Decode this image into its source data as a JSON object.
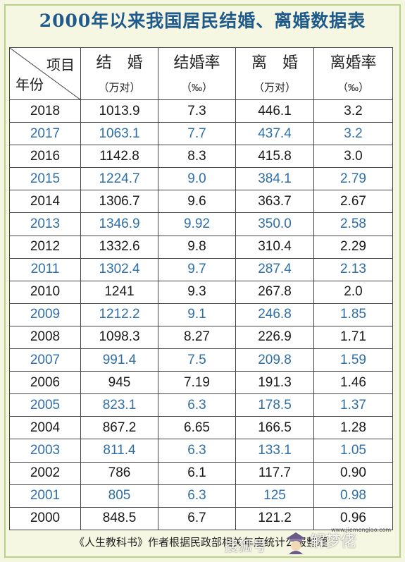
{
  "title": "2000年以来我国居民结婚、离婚数据表",
  "table": {
    "corner_top": "项目",
    "corner_bottom": "年份",
    "headers": [
      {
        "main": "结　婚",
        "unit": "（万对）"
      },
      {
        "main": "结婚率",
        "unit": "（‰）"
      },
      {
        "main": "离　婚",
        "unit": "（万对）"
      },
      {
        "main": "离婚率",
        "unit": "（‰）"
      }
    ],
    "rows": [
      {
        "year": "2018",
        "marriages": "1013.9",
        "marriage_rate": "7.3",
        "divorces": "446.1",
        "divorce_rate": "3.2",
        "style": "dark"
      },
      {
        "year": "2017",
        "marriages": "1063.1",
        "marriage_rate": "7.7",
        "divorces": "437.4",
        "divorce_rate": "3.2",
        "style": "blue"
      },
      {
        "year": "2016",
        "marriages": "1142.8",
        "marriage_rate": "8.3",
        "divorces": "415.8",
        "divorce_rate": "3.0",
        "style": "dark"
      },
      {
        "year": "2015",
        "marriages": "1224.7",
        "marriage_rate": "9.0",
        "divorces": "384.1",
        "divorce_rate": "2.79",
        "style": "blue"
      },
      {
        "year": "2014",
        "marriages": "1306.7",
        "marriage_rate": "9.6",
        "divorces": "363.7",
        "divorce_rate": "2.67",
        "style": "dark"
      },
      {
        "year": "2013",
        "marriages": "1346.9",
        "marriage_rate": "9.92",
        "divorces": "350.0",
        "divorce_rate": "2.58",
        "style": "blue"
      },
      {
        "year": "2012",
        "marriages": "1332.6",
        "marriage_rate": "9.8",
        "divorces": "310.4",
        "divorce_rate": "2.29",
        "style": "dark"
      },
      {
        "year": "2011",
        "marriages": "1302.4",
        "marriage_rate": "9.7",
        "divorces": "287.4",
        "divorce_rate": "2.13",
        "style": "blue"
      },
      {
        "year": "2010",
        "marriages": "1241",
        "marriage_rate": "9.3",
        "divorces": "267.8",
        "divorce_rate": "2.0",
        "style": "dark"
      },
      {
        "year": "2009",
        "marriages": "1212.2",
        "marriage_rate": "9.1",
        "divorces": "246.8",
        "divorce_rate": "1.85",
        "style": "blue"
      },
      {
        "year": "2008",
        "marriages": "1098.3",
        "marriage_rate": "8.27",
        "divorces": "226.9",
        "divorce_rate": "1.71",
        "style": "dark"
      },
      {
        "year": "2007",
        "marriages": "991.4",
        "marriage_rate": "7.5",
        "divorces": "209.8",
        "divorce_rate": "1.59",
        "style": "blue"
      },
      {
        "year": "2006",
        "marriages": "945",
        "marriage_rate": "7.19",
        "divorces": "191.3",
        "divorce_rate": "1.46",
        "style": "dark"
      },
      {
        "year": "2005",
        "marriages": "823.1",
        "marriage_rate": "6.3",
        "divorces": "178.5",
        "divorce_rate": "1.37",
        "style": "blue"
      },
      {
        "year": "2004",
        "marriages": "867.2",
        "marriage_rate": "6.65",
        "divorces": "166.5",
        "divorce_rate": "1.28",
        "style": "dark"
      },
      {
        "year": "2003",
        "marriages": "811.4",
        "marriage_rate": "6.3",
        "divorces": "133.1",
        "divorce_rate": "1.05",
        "style": "blue"
      },
      {
        "year": "2002",
        "marriages": "786",
        "marriage_rate": "6.1",
        "divorces": "117.7",
        "divorce_rate": "0.90",
        "style": "dark"
      },
      {
        "year": "2001",
        "marriages": "805",
        "marriage_rate": "6.3",
        "divorces": "125",
        "divorce_rate": "0.98",
        "style": "blue"
      },
      {
        "year": "2000",
        "marriages": "848.5",
        "marriage_rate": "6.7",
        "divorces": "121.2",
        "divorce_rate": "0.96",
        "style": "dark"
      }
    ]
  },
  "footer": "《人生教科书》作者根据民政部相关年度统计公报整理",
  "watermark": {
    "left": "搜狐号",
    "right": "解梦佬",
    "url": "www.jiemenglao.com",
    "icon": "fortune-teller-logo-icon"
  },
  "colors": {
    "title": "#1f5a8c",
    "blue_row": "#2f6fa7",
    "dark_row": "#1a1a1a",
    "border": "#b9d08a",
    "background": "#f5f6df"
  }
}
